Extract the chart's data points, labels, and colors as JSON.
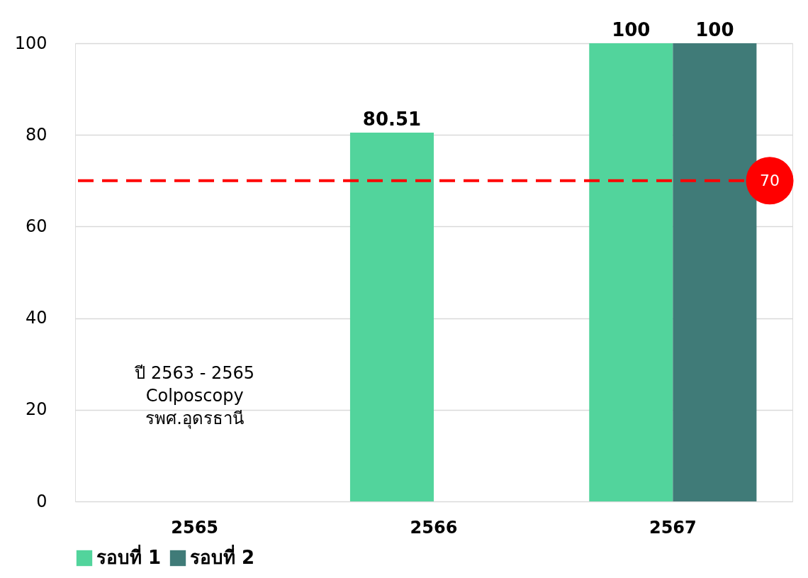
{
  "chart_data": {
    "type": "bar",
    "categories": [
      "2565",
      "2566",
      "2567"
    ],
    "series": [
      {
        "name": "รอบที่ 1",
        "color": "#52d49c",
        "values": [
          null,
          80.51,
          100
        ]
      },
      {
        "name": "รอบที่ 2",
        "color": "#407b78",
        "values": [
          null,
          null,
          100
        ]
      }
    ],
    "ylim": [
      0,
      100
    ],
    "yticks": [
      0,
      20,
      40,
      60,
      80,
      100
    ],
    "grid": "y",
    "legend": "bottom",
    "data_labels": true,
    "ref_lines": [
      {
        "axis": "y",
        "value": 70,
        "label": "70",
        "color": "#ff0000",
        "line_style": "dashed"
      }
    ],
    "annotations": [
      "ปี 2563 - 2565\nColposcopy\nรพศ.อุดรธานี"
    ]
  }
}
